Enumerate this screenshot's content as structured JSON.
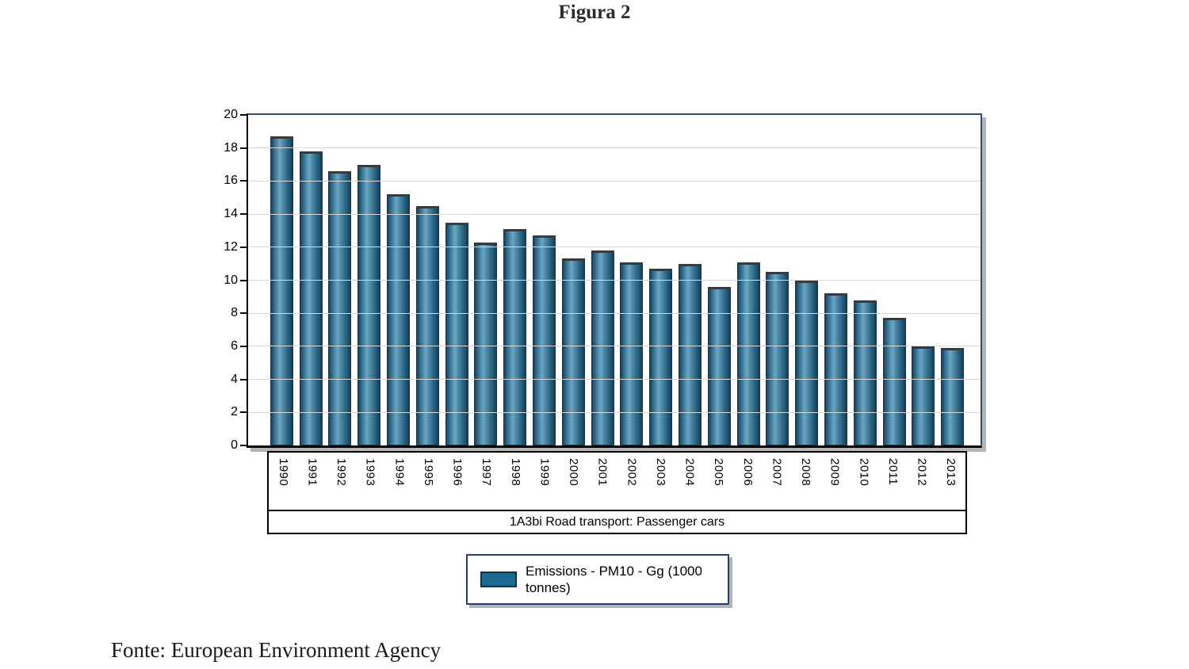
{
  "figure": {
    "title": "Figura 2",
    "source": "Fonte: European Environment Agency"
  },
  "chart_data": {
    "type": "bar",
    "title": "Figura 2",
    "categories": [
      "1990",
      "1991",
      "1992",
      "1993",
      "1994",
      "1995",
      "1996",
      "1997",
      "1998",
      "1999",
      "2000",
      "2001",
      "2002",
      "2003",
      "2004",
      "2005",
      "2006",
      "2007",
      "2008",
      "2009",
      "2010",
      "2011",
      "2012",
      "2013"
    ],
    "values": [
      18.7,
      17.8,
      16.6,
      17.0,
      15.2,
      14.5,
      13.5,
      12.3,
      13.1,
      12.7,
      11.3,
      11.8,
      11.1,
      10.7,
      11.0,
      9.6,
      11.1,
      10.5,
      10.0,
      9.2,
      8.8,
      7.7,
      6.0,
      5.9
    ],
    "series_name": "Emissions - PM10 - Gg (1000 tonnes)",
    "xlabel": "1A3bi Road transport: Passenger cars",
    "ylabel": "",
    "ylim": [
      0,
      20
    ],
    "ytick_step": 2,
    "grid": "horizontal",
    "legend_position": "bottom",
    "x_tick_rotation_deg": 90
  },
  "legend": {
    "label": "Emissions - PM10 - Gg (1000 tonnes)",
    "swatch_color": "#1d6a8f"
  },
  "colors": {
    "bar_fill": "#1d6a8f",
    "bar_highlight": "#6ba6c2",
    "bar_edge": "#16445c",
    "plot_border": "#2e4d74",
    "axis": "#000000",
    "gridline": "#d9d9d9",
    "shadow": "#b4b4b4",
    "legend_border": "#1f3f77",
    "text": "#000000"
  }
}
